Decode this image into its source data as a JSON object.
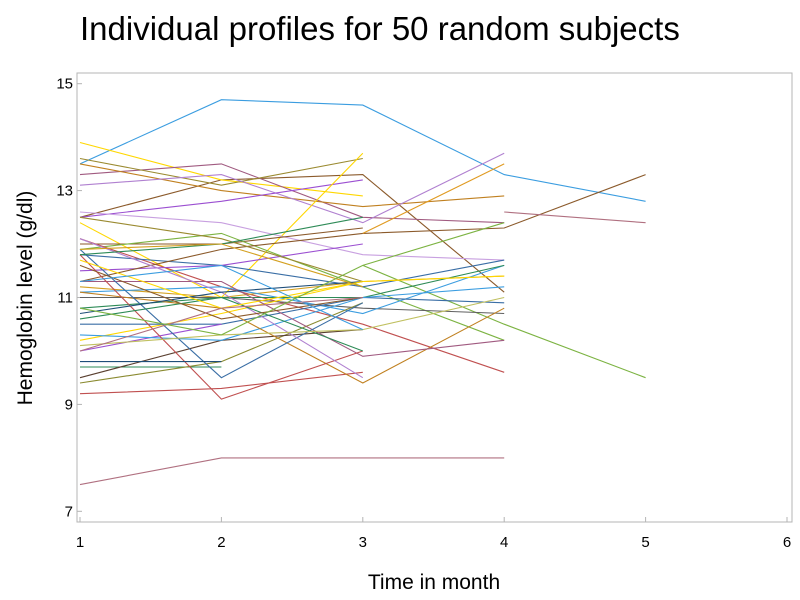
{
  "chart_data": {
    "type": "line",
    "title": "Individual profiles for 50 random subjects",
    "xlabel": "Time in month",
    "ylabel": "Hemoglobin level (g/dl)",
    "xlim": [
      1,
      6
    ],
    "ylim": [
      6.8,
      15.2
    ],
    "xticks": [
      "1",
      "2",
      "3",
      "4",
      "5",
      "6"
    ],
    "yticks": [
      "7",
      "9",
      "11",
      "13",
      "15"
    ],
    "grid": false,
    "legend": "none",
    "series": [
      {
        "color": "#3b9de0",
        "points": [
          [
            1,
            13.5
          ],
          [
            2,
            14.7
          ],
          [
            3,
            14.6
          ],
          [
            4,
            13.3
          ],
          [
            5,
            12.8
          ]
        ]
      },
      {
        "color": "#8b5a2b",
        "points": [
          [
            1,
            12.5
          ],
          [
            2,
            13.2
          ],
          [
            3,
            13.3
          ],
          [
            4,
            11.1
          ]
        ]
      },
      {
        "color": "#8b5a2b",
        "points": [
          [
            3,
            12.2
          ],
          [
            4,
            12.3
          ],
          [
            5,
            13.3
          ]
        ]
      },
      {
        "color": "#b07080",
        "points": [
          [
            4,
            12.6
          ],
          [
            5,
            12.4
          ]
        ]
      },
      {
        "color": "#7cb342",
        "points": [
          [
            3,
            11.6
          ],
          [
            4,
            10.5
          ],
          [
            5,
            9.5
          ]
        ]
      },
      {
        "color": "#ffd700",
        "points": [
          [
            1,
            13.9
          ],
          [
            2,
            13.2
          ],
          [
            3,
            12.9
          ]
        ]
      },
      {
        "color": "#a05a80",
        "points": [
          [
            1,
            13.3
          ],
          [
            2,
            13.5
          ],
          [
            3,
            12.5
          ],
          [
            4,
            12.4
          ]
        ]
      },
      {
        "color": "#9a8a30",
        "points": [
          [
            1,
            13.6
          ],
          [
            2,
            13.1
          ],
          [
            3,
            13.6
          ]
        ]
      },
      {
        "color": "#c08020",
        "points": [
          [
            1,
            13.5
          ],
          [
            2,
            13.0
          ],
          [
            3,
            12.7
          ],
          [
            4,
            12.9
          ]
        ]
      },
      {
        "color": "#b080d0",
        "points": [
          [
            1,
            13.1
          ],
          [
            2,
            13.3
          ],
          [
            3,
            12.4
          ],
          [
            4,
            13.7
          ]
        ]
      },
      {
        "color": "#9b4fd1",
        "points": [
          [
            1,
            12.5
          ],
          [
            2,
            12.8
          ],
          [
            3,
            13.2
          ]
        ]
      },
      {
        "color": "#e09a20",
        "points": [
          [
            3,
            12.2
          ],
          [
            4,
            13.5
          ]
        ]
      },
      {
        "color": "#ffd700",
        "points": [
          [
            1,
            12.4
          ],
          [
            2,
            11.0
          ],
          [
            3,
            13.7
          ]
        ]
      },
      {
        "color": "#c8a0e0",
        "points": [
          [
            1,
            12.6
          ],
          [
            2,
            12.4
          ],
          [
            3,
            11.8
          ],
          [
            4,
            11.7
          ]
        ]
      },
      {
        "color": "#8b5a2b",
        "points": [
          [
            1,
            12.0
          ],
          [
            2,
            12.0
          ],
          [
            3,
            12.3
          ]
        ]
      },
      {
        "color": "#7cb342",
        "points": [
          [
            1,
            11.9
          ],
          [
            2,
            12.2
          ],
          [
            3,
            11.2
          ],
          [
            4,
            10.2
          ]
        ]
      },
      {
        "color": "#c05050",
        "points": [
          [
            1,
            12.1
          ],
          [
            2,
            11.2
          ],
          [
            3,
            10.5
          ],
          [
            4,
            9.6
          ]
        ]
      },
      {
        "color": "#3a6ea5",
        "points": [
          [
            1,
            11.8
          ],
          [
            2,
            11.6
          ],
          [
            3,
            11.2
          ],
          [
            4,
            11.7
          ]
        ]
      },
      {
        "color": "#9b4fd1",
        "points": [
          [
            1,
            11.5
          ],
          [
            2,
            11.6
          ],
          [
            3,
            12.0
          ]
        ]
      },
      {
        "color": "#d4a020",
        "points": [
          [
            1,
            11.2
          ],
          [
            2,
            11.0
          ],
          [
            3,
            11.3
          ],
          [
            4,
            11.4
          ]
        ]
      },
      {
        "color": "#606060",
        "points": [
          [
            1,
            11.0
          ],
          [
            2,
            11.0
          ],
          [
            3,
            10.8
          ],
          [
            4,
            10.7
          ]
        ]
      },
      {
        "color": "#3b9de0",
        "points": [
          [
            1,
            11.1
          ],
          [
            2,
            11.2
          ],
          [
            3,
            10.7
          ],
          [
            4,
            11.6
          ]
        ]
      },
      {
        "color": "#2e8b57",
        "points": [
          [
            1,
            10.8
          ],
          [
            2,
            11.0
          ],
          [
            3,
            11.0
          ],
          [
            4,
            11.6
          ]
        ]
      },
      {
        "color": "#ffd700",
        "points": [
          [
            1,
            10.2
          ],
          [
            2,
            10.7
          ],
          [
            3,
            11.3
          ],
          [
            4,
            11.4
          ]
        ]
      },
      {
        "color": "#3a6ea5",
        "points": [
          [
            1,
            10.5
          ],
          [
            2,
            10.5
          ],
          [
            3,
            11.0
          ],
          [
            4,
            10.9
          ]
        ]
      },
      {
        "color": "#9b4fd1",
        "points": [
          [
            1,
            10.0
          ],
          [
            2,
            10.5
          ]
        ]
      },
      {
        "color": "#2e8b57",
        "points": [
          [
            1,
            9.7
          ],
          [
            2,
            9.7
          ]
        ]
      },
      {
        "color": "#c05050",
        "points": [
          [
            1,
            9.2
          ],
          [
            2,
            9.3
          ],
          [
            3,
            9.6
          ]
        ]
      },
      {
        "color": "#8a8a30",
        "points": [
          [
            1,
            9.4
          ],
          [
            2,
            9.8
          ],
          [
            3,
            10.9
          ]
        ]
      },
      {
        "color": "#5a4030",
        "points": [
          [
            1,
            9.5
          ],
          [
            2,
            10.2
          ],
          [
            3,
            10.4
          ]
        ]
      },
      {
        "color": "#3b9de0",
        "points": [
          [
            1,
            10.3
          ],
          [
            2,
            10.2
          ],
          [
            3,
            11.0
          ],
          [
            4,
            11.2
          ]
        ]
      },
      {
        "color": "#c08020",
        "points": [
          [
            1,
            11.1
          ],
          [
            2,
            10.8
          ],
          [
            3,
            9.4
          ],
          [
            4,
            10.8
          ]
        ]
      },
      {
        "color": "#a05a80",
        "points": [
          [
            1,
            11.3
          ],
          [
            2,
            11.3
          ],
          [
            3,
            9.9
          ],
          [
            4,
            10.2
          ]
        ]
      },
      {
        "color": "#b07080",
        "points": [
          [
            1,
            7.5
          ],
          [
            2,
            8.0
          ],
          [
            3,
            8.0
          ],
          [
            4,
            8.0
          ]
        ]
      },
      {
        "color": "#8b5a2b",
        "points": [
          [
            1,
            11.3
          ],
          [
            2,
            11.9
          ],
          [
            3,
            12.2
          ]
        ]
      },
      {
        "color": "#3a6ea5",
        "points": [
          [
            1,
            11.9
          ],
          [
            2,
            9.5
          ],
          [
            3,
            10.9
          ]
        ]
      },
      {
        "color": "#c05050",
        "points": [
          [
            1,
            11.8
          ],
          [
            2,
            9.1
          ],
          [
            3,
            10.0
          ]
        ]
      },
      {
        "color": "#b080d0",
        "points": [
          [
            1,
            12.1
          ],
          [
            2,
            11.1
          ],
          [
            3,
            9.5
          ]
        ]
      },
      {
        "color": "#2e8b57",
        "points": [
          [
            1,
            10.6
          ],
          [
            2,
            11.0
          ],
          [
            3,
            10.0
          ]
        ]
      },
      {
        "color": "#1f4e79",
        "points": [
          [
            1,
            10.7
          ],
          [
            2,
            11.1
          ],
          [
            3,
            11.3
          ]
        ]
      },
      {
        "color": "#9a8a30",
        "points": [
          [
            1,
            12.5
          ],
          [
            2,
            12.1
          ],
          [
            3,
            11.3
          ]
        ]
      },
      {
        "color": "#c0c060",
        "points": [
          [
            1,
            10.1
          ],
          [
            2,
            10.3
          ],
          [
            3,
            10.4
          ],
          [
            4,
            11.0
          ]
        ]
      },
      {
        "color": "#8b5a2b",
        "points": [
          [
            1,
            11.6
          ],
          [
            2,
            10.6
          ],
          [
            3,
            11.0
          ]
        ]
      },
      {
        "color": "#ffd700",
        "points": [
          [
            1,
            11.7
          ],
          [
            2,
            10.8
          ],
          [
            3,
            11.3
          ]
        ]
      },
      {
        "color": "#3b9de0",
        "points": [
          [
            1,
            11.3
          ],
          [
            2,
            11.6
          ],
          [
            3,
            10.4
          ]
        ]
      },
      {
        "color": "#2e8b57",
        "points": [
          [
            1,
            11.8
          ],
          [
            2,
            12.0
          ],
          [
            3,
            12.5
          ]
        ]
      },
      {
        "color": "#1f4e79",
        "points": [
          [
            1,
            9.8
          ],
          [
            2,
            9.8
          ]
        ]
      },
      {
        "color": "#d4a020",
        "points": [
          [
            1,
            11.9
          ],
          [
            2,
            12.0
          ],
          [
            3,
            11.2
          ]
        ]
      },
      {
        "color": "#b07080",
        "points": [
          [
            1,
            10.0
          ],
          [
            2,
            10.8
          ],
          [
            3,
            11.0
          ]
        ]
      },
      {
        "color": "#7cb342",
        "points": [
          [
            1,
            10.8
          ],
          [
            2,
            10.3
          ],
          [
            3,
            11.6
          ],
          [
            4,
            12.4
          ]
        ]
      }
    ]
  }
}
